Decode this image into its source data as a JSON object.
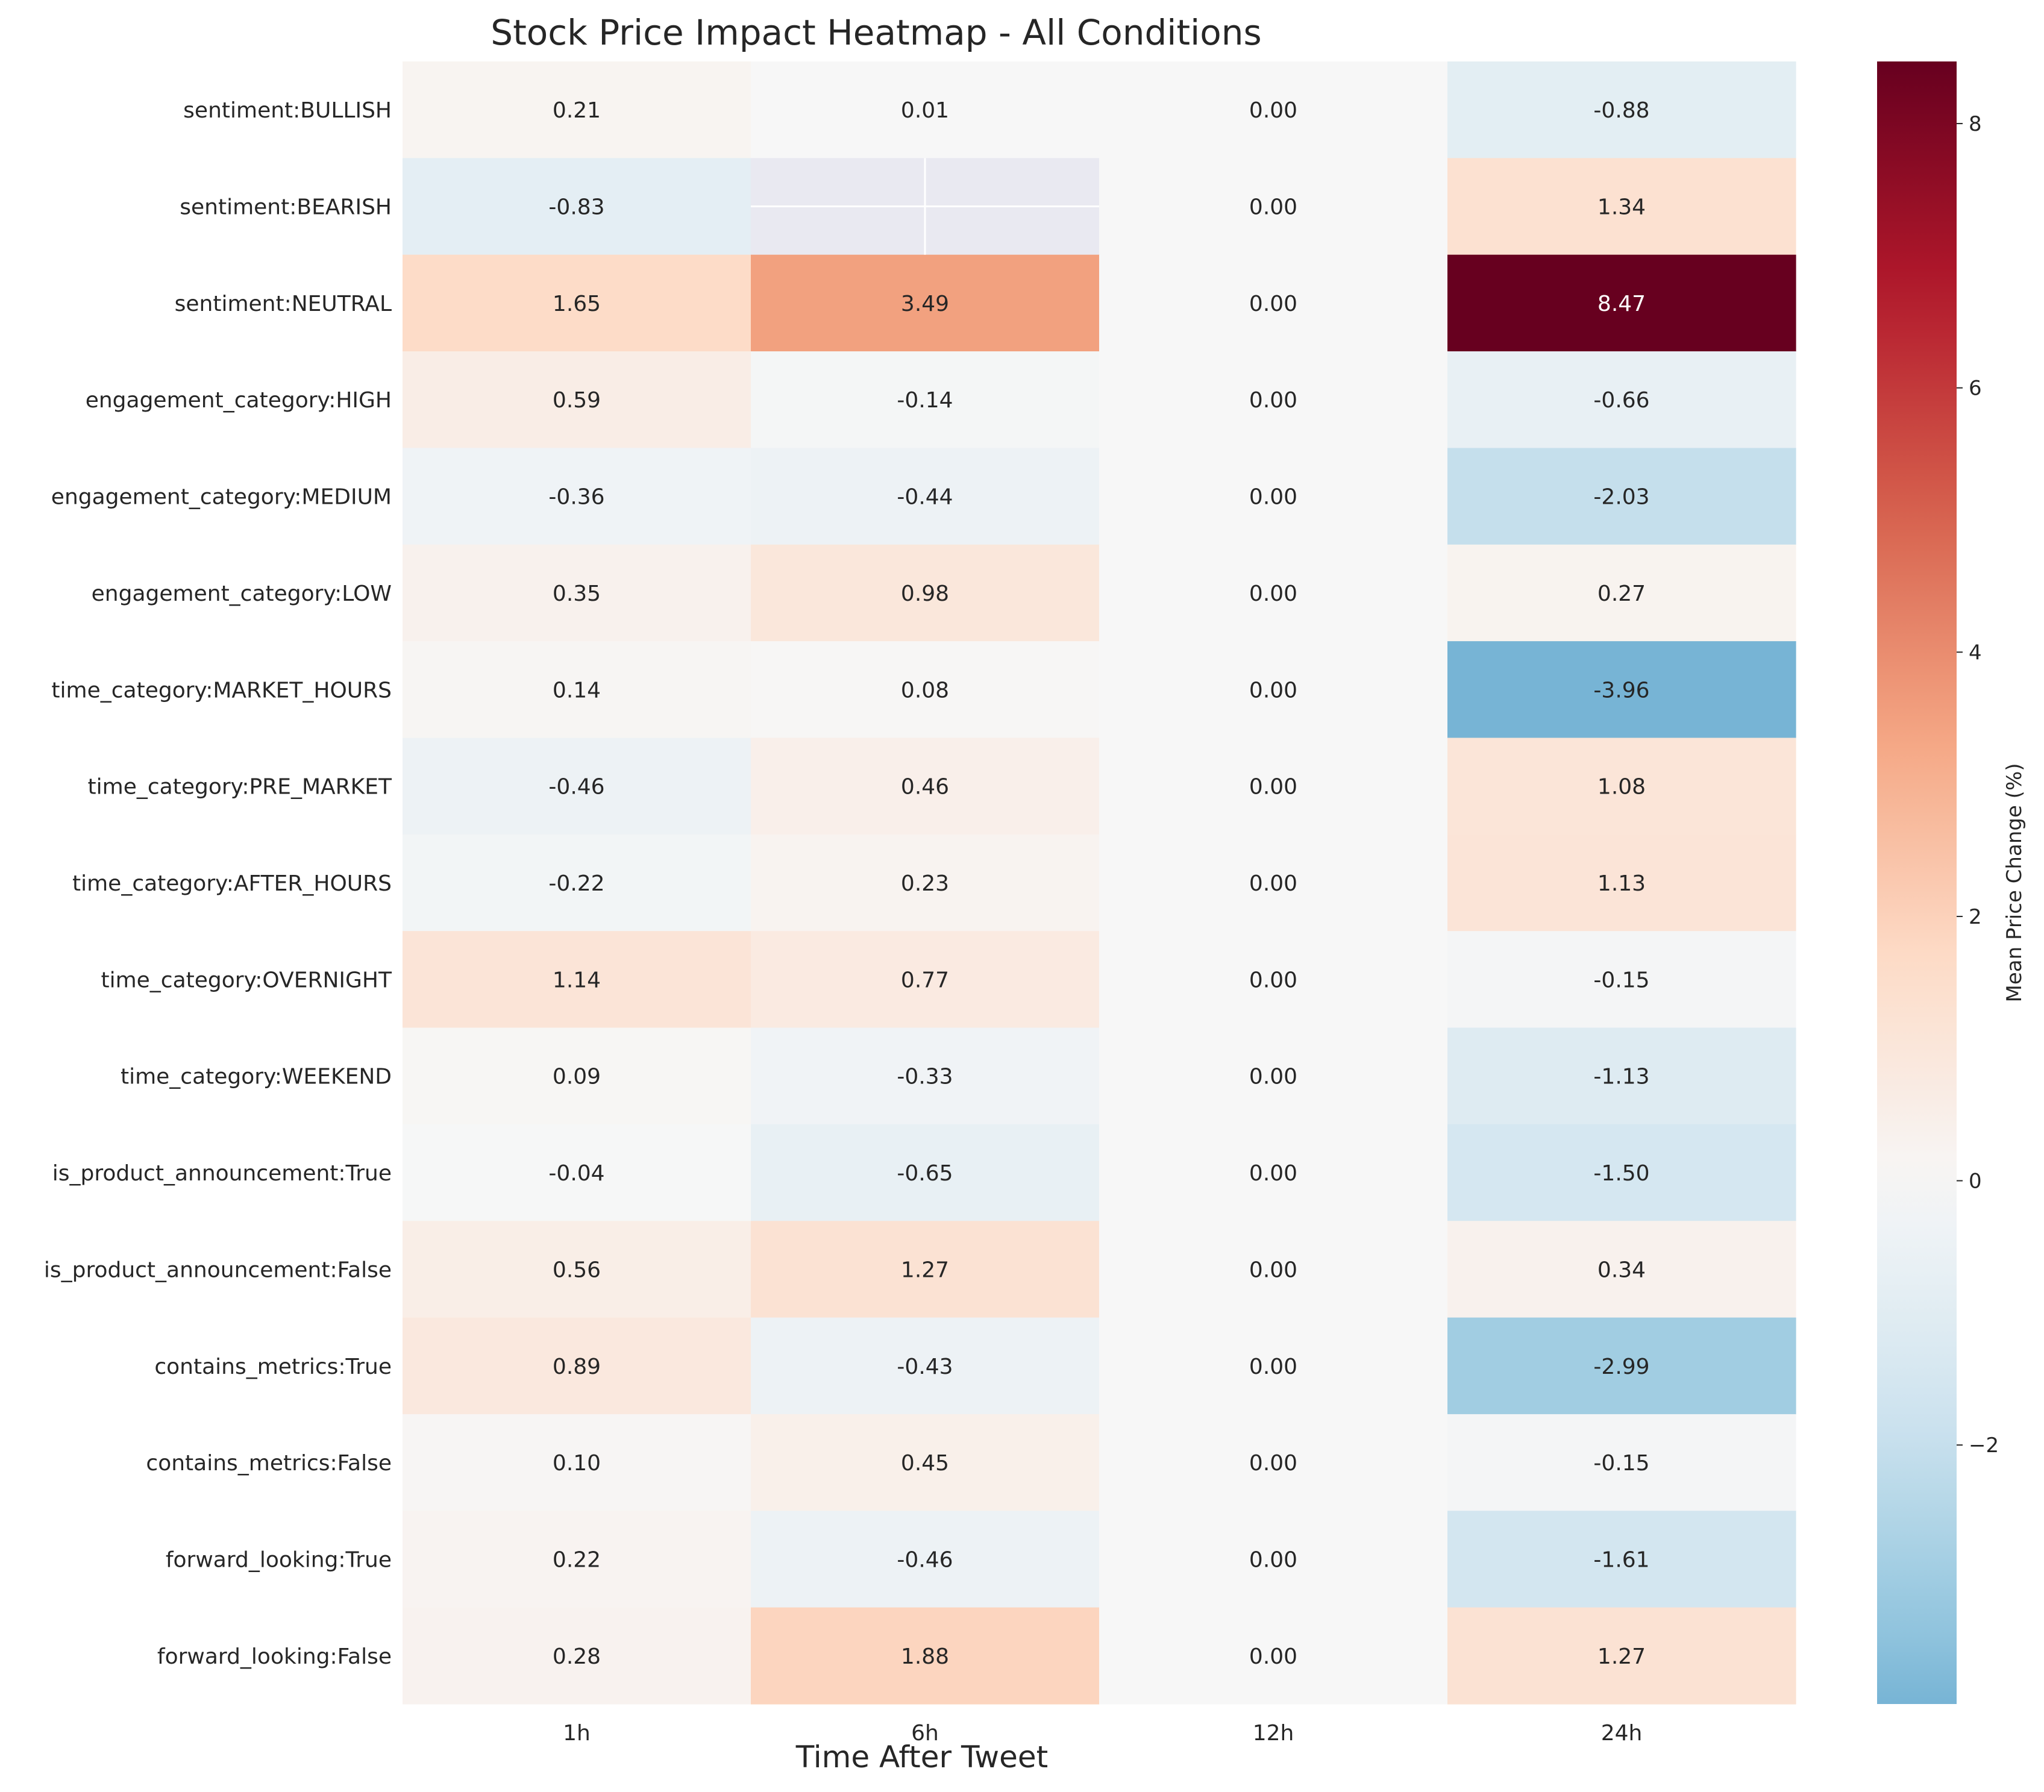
{
  "chart_data": {
    "type": "heatmap",
    "title": "Stock Price Impact Heatmap - All Conditions",
    "xlabel": "Time After Tweet",
    "ylabel": "",
    "colorbar_label": "Mean Price Change (%)",
    "x": [
      "1h",
      "6h",
      "12h",
      "24h"
    ],
    "y": [
      "sentiment:BULLISH",
      "sentiment:BEARISH",
      "sentiment:NEUTRAL",
      "engagement_category:HIGH",
      "engagement_category:MEDIUM",
      "engagement_category:LOW",
      "time_category:MARKET_HOURS",
      "time_category:PRE_MARKET",
      "time_category:AFTER_HOURS",
      "time_category:OVERNIGHT",
      "time_category:WEEKEND",
      "is_product_announcement:True",
      "is_product_announcement:False",
      "contains_metrics:True",
      "contains_metrics:False",
      "forward_looking:True",
      "forward_looking:False"
    ],
    "values": [
      [
        0.21,
        0.01,
        0.0,
        -0.88
      ],
      [
        -0.83,
        null,
        0.0,
        1.34
      ],
      [
        1.65,
        3.49,
        0.0,
        8.47
      ],
      [
        0.59,
        -0.14,
        0.0,
        -0.66
      ],
      [
        -0.36,
        -0.44,
        0.0,
        -2.03
      ],
      [
        0.35,
        0.98,
        0.0,
        0.27
      ],
      [
        0.14,
        0.08,
        0.0,
        -3.96
      ],
      [
        -0.46,
        0.46,
        0.0,
        1.08
      ],
      [
        -0.22,
        0.23,
        0.0,
        1.13
      ],
      [
        1.14,
        0.77,
        0.0,
        -0.15
      ],
      [
        0.09,
        -0.33,
        0.0,
        -1.13
      ],
      [
        -0.04,
        -0.65,
        0.0,
        -1.5
      ],
      [
        0.56,
        1.27,
        0.0,
        0.34
      ],
      [
        0.89,
        -0.43,
        0.0,
        -2.99
      ],
      [
        0.1,
        0.45,
        0.0,
        -0.15
      ],
      [
        0.22,
        -0.46,
        0.0,
        -1.61
      ],
      [
        0.28,
        1.88,
        0.0,
        1.27
      ]
    ],
    "colorscale": "RdBu_r",
    "vmin": -3.96,
    "vmax": 8.47,
    "center": 0,
    "colorbar_ticks": [
      -2,
      0,
      2,
      4,
      6,
      8
    ],
    "missing_cell_color": "#e9e9f1"
  }
}
